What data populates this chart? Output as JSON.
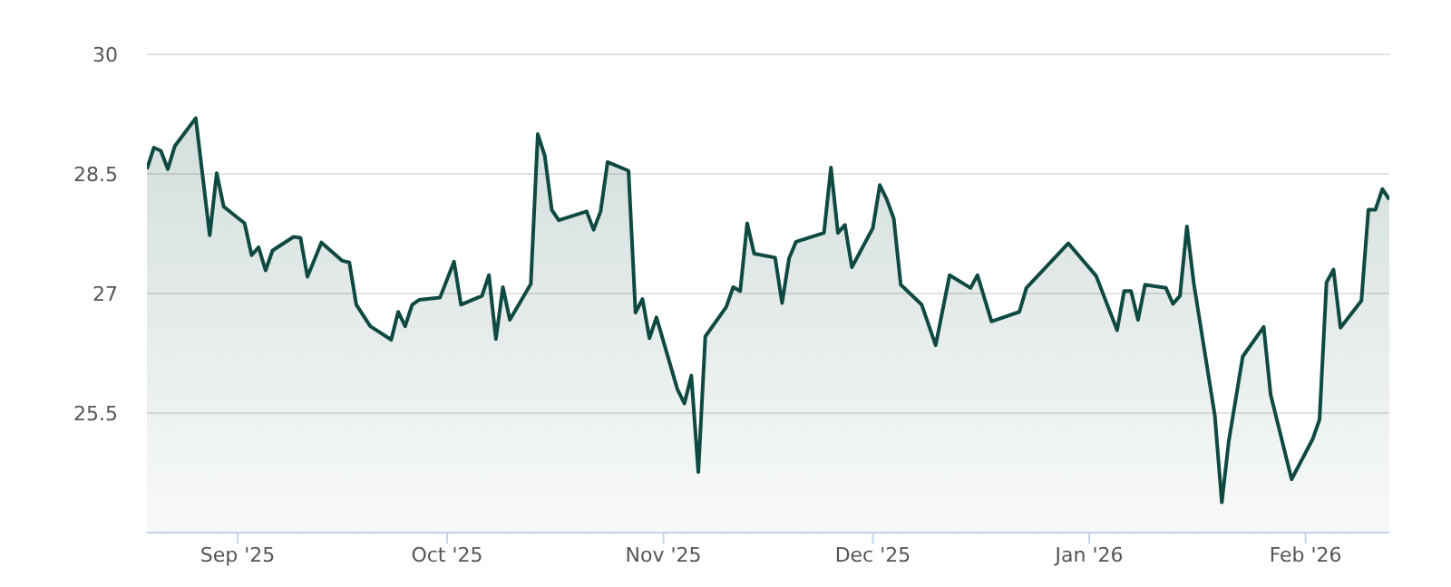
{
  "chart_data": {
    "type": "area",
    "x": [
      "2025-08-19",
      "2025-08-20",
      "2025-08-21",
      "2025-08-22",
      "2025-08-23",
      "2025-08-26",
      "2025-08-28",
      "2025-08-29",
      "2025-08-30",
      "2025-09-02",
      "2025-09-03",
      "2025-09-04",
      "2025-09-05",
      "2025-09-06",
      "2025-09-09",
      "2025-09-10",
      "2025-09-11",
      "2025-09-13",
      "2025-09-16",
      "2025-09-17",
      "2025-09-18",
      "2025-09-20",
      "2025-09-23",
      "2025-09-24",
      "2025-09-25",
      "2025-09-26",
      "2025-09-27",
      "2025-09-30",
      "2025-10-02",
      "2025-10-03",
      "2025-10-06",
      "2025-10-07",
      "2025-10-08",
      "2025-10-09",
      "2025-10-10",
      "2025-10-13",
      "2025-10-14",
      "2025-10-15",
      "2025-10-16",
      "2025-10-17",
      "2025-10-21",
      "2025-10-22",
      "2025-10-23",
      "2025-10-24",
      "2025-10-27",
      "2025-10-28",
      "2025-10-29",
      "2025-10-30",
      "2025-10-31",
      "2025-11-03",
      "2025-11-04",
      "2025-11-05",
      "2025-11-06",
      "2025-11-07",
      "2025-11-10",
      "2025-11-11",
      "2025-11-12",
      "2025-11-13",
      "2025-11-14",
      "2025-11-17",
      "2025-11-18",
      "2025-11-19",
      "2025-11-20",
      "2025-11-24",
      "2025-11-25",
      "2025-11-26",
      "2025-11-27",
      "2025-11-28",
      "2025-12-01",
      "2025-12-02",
      "2025-12-03",
      "2025-12-04",
      "2025-12-05",
      "2025-12-08",
      "2025-12-10",
      "2025-12-12",
      "2025-12-15",
      "2025-12-16",
      "2025-12-18",
      "2025-12-22",
      "2025-12-23",
      "2025-12-29",
      "2026-01-02",
      "2026-01-05",
      "2026-01-06",
      "2026-01-07",
      "2026-01-08",
      "2026-01-09",
      "2026-01-12",
      "2026-01-13",
      "2026-01-14",
      "2026-01-15",
      "2026-01-16",
      "2026-01-19",
      "2026-01-20",
      "2026-01-21",
      "2026-01-23",
      "2026-01-26",
      "2026-01-27",
      "2026-01-30",
      "2026-02-02",
      "2026-02-03",
      "2026-02-04",
      "2026-02-05",
      "2026-02-06",
      "2026-02-09",
      "2026-02-10",
      "2026-02-11",
      "2026-02-12",
      "2026-02-13"
    ],
    "series": [
      {
        "color": "#0f4a42",
        "values": [
          28.56,
          28.83,
          28.79,
          28.56,
          28.85,
          29.2,
          27.73,
          28.51,
          28.09,
          27.88,
          27.48,
          27.58,
          27.29,
          27.54,
          27.71,
          27.7,
          27.21,
          27.64,
          27.41,
          27.39,
          26.86,
          26.59,
          26.42,
          26.77,
          26.59,
          26.86,
          26.92,
          26.95,
          27.4,
          26.86,
          26.97,
          27.23,
          26.43,
          27.08,
          26.67,
          27.12,
          29.0,
          28.73,
          28.05,
          27.92,
          28.03,
          27.8,
          28.03,
          28.65,
          28.54,
          26.76,
          26.93,
          26.44,
          26.7,
          25.8,
          25.62,
          25.97,
          24.76,
          26.46,
          26.83,
          27.08,
          27.03,
          27.88,
          27.5,
          27.45,
          26.88,
          27.44,
          27.65,
          27.76,
          28.58,
          27.76,
          27.86,
          27.33,
          27.82,
          28.36,
          28.18,
          27.94,
          27.11,
          26.86,
          26.35,
          27.23,
          27.07,
          27.23,
          26.65,
          26.77,
          27.07,
          27.63,
          27.22,
          26.54,
          27.03,
          27.03,
          26.67,
          27.11,
          27.07,
          26.87,
          26.97,
          27.84,
          27.12,
          25.47,
          24.38,
          25.15,
          26.21,
          26.58,
          25.73,
          24.67,
          25.17,
          25.42,
          27.14,
          27.3,
          26.57,
          26.91,
          28.05,
          28.05,
          28.31,
          28.18
        ]
      }
    ],
    "xlim": [
      "2025-08-19",
      "2026-02-13"
    ],
    "xticks": [
      {
        "value": "2025-09-01",
        "label": "Sep '25"
      },
      {
        "value": "2025-10-01",
        "label": "Oct '25"
      },
      {
        "value": "2025-11-01",
        "label": "Nov '25"
      },
      {
        "value": "2025-12-01",
        "label": "Dec '25"
      },
      {
        "value": "2026-01-01",
        "label": "Jan '26"
      },
      {
        "value": "2026-02-01",
        "label": "Feb '26"
      }
    ],
    "ylim": [
      24,
      30
    ],
    "yticks": [
      25.5,
      27,
      28.5,
      30
    ],
    "grid": "y",
    "marker": "none",
    "legend": false
  }
}
